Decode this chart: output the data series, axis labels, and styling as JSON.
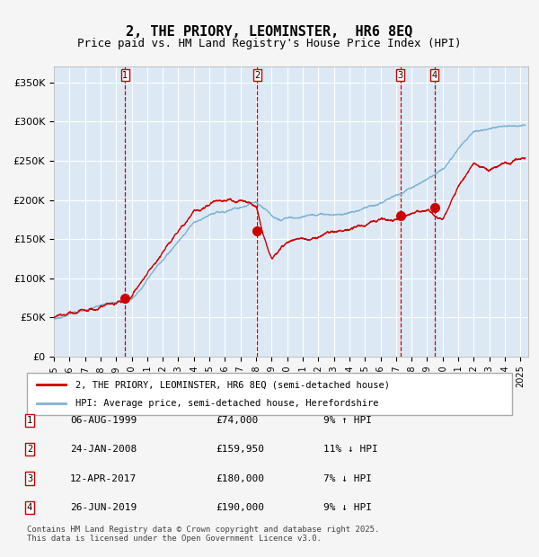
{
  "title": "2, THE PRIORY, LEOMINSTER,  HR6 8EQ",
  "subtitle": "Price paid vs. HM Land Registry's House Price Index (HPI)",
  "title_fontsize": 11,
  "subtitle_fontsize": 9,
  "ylabel": "",
  "ylim": [
    0,
    370000
  ],
  "yticks": [
    0,
    50000,
    100000,
    150000,
    200000,
    250000,
    300000,
    350000
  ],
  "ytick_labels": [
    "£0",
    "£50K",
    "£100K",
    "£150K",
    "£200K",
    "£250K",
    "£300K",
    "£350K"
  ],
  "xmin": 1995.0,
  "xmax": 2025.5,
  "background_color": "#dce9f5",
  "plot_bg_color": "#dce9f5",
  "grid_color": "#ffffff",
  "line_red_color": "#cc0000",
  "line_blue_color": "#7fb3d3",
  "purchases": [
    {
      "date_num": 1999.59,
      "price": 74000,
      "label": "1"
    },
    {
      "date_num": 2008.07,
      "price": 159950,
      "label": "2"
    },
    {
      "date_num": 2017.28,
      "price": 180000,
      "label": "3"
    },
    {
      "date_num": 2019.48,
      "price": 190000,
      "label": "4"
    }
  ],
  "legend_red": "2, THE PRIORY, LEOMINSTER, HR6 8EQ (semi-detached house)",
  "legend_blue": "HPI: Average price, semi-detached house, Herefordshire",
  "table_rows": [
    {
      "num": "1",
      "date": "06-AUG-1999",
      "price": "£74,000",
      "hpi": "9% ↑ HPI"
    },
    {
      "num": "2",
      "date": "24-JAN-2008",
      "price": "£159,950",
      "hpi": "11% ↓ HPI"
    },
    {
      "num": "3",
      "date": "12-APR-2017",
      "price": "£180,000",
      "hpi": "7% ↓ HPI"
    },
    {
      "num": "4",
      "date": "26-JUN-2019",
      "price": "£190,000",
      "hpi": "9% ↓ HPI"
    }
  ],
  "footnote": "Contains HM Land Registry data © Crown copyright and database right 2025.\nThis data is licensed under the Open Government Licence v3.0."
}
